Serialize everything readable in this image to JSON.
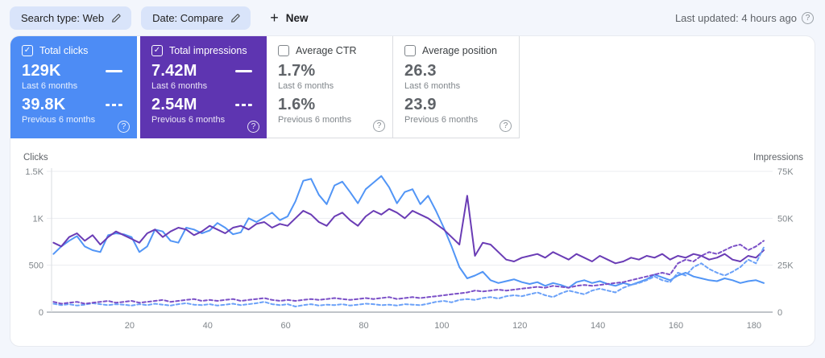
{
  "toolbar": {
    "chips": [
      {
        "label": "Search type: Web"
      },
      {
        "label": "Date: Compare"
      }
    ],
    "new_button_label": "New",
    "last_updated": "Last updated: 4 hours ago"
  },
  "cards": [
    {
      "title": "Total clicks",
      "checked": true,
      "color": "#4d8cf5",
      "current": {
        "value": "129K",
        "label": "Last 6 months"
      },
      "previous": {
        "value": "39.8K",
        "label": "Previous 6 months"
      }
    },
    {
      "title": "Total impressions",
      "checked": true,
      "color": "#5e35b1",
      "current": {
        "value": "7.42M",
        "label": "Last 6 months"
      },
      "previous": {
        "value": "2.54M",
        "label": "Previous 6 months"
      }
    },
    {
      "title": "Average CTR",
      "checked": false,
      "current": {
        "value": "1.7%",
        "label": "Last 6 months"
      },
      "previous": {
        "value": "1.6%",
        "label": "Previous 6 months"
      }
    },
    {
      "title": "Average position",
      "checked": false,
      "current": {
        "value": "26.3",
        "label": "Last 6 months"
      },
      "previous": {
        "value": "23.9",
        "label": "Previous 6 months"
      }
    }
  ],
  "chart_data": {
    "type": "line",
    "left_axis": {
      "title": "Clicks",
      "range": [
        0,
        1500
      ],
      "ticks": [
        0,
        500,
        1000,
        1500
      ],
      "tick_labels": [
        "0",
        "500",
        "1K",
        "1.5K"
      ]
    },
    "right_axis": {
      "title": "Impressions",
      "range": [
        0,
        75000
      ],
      "ticks": [
        0,
        25000,
        50000,
        75000
      ],
      "tick_labels": [
        "0",
        "25K",
        "50K",
        "75K"
      ]
    },
    "x_axis": {
      "range": [
        0,
        184
      ],
      "ticks": [
        20,
        40,
        60,
        80,
        100,
        120,
        140,
        160,
        180
      ]
    },
    "x_step": 2,
    "grid": true,
    "series": [
      {
        "name": "Total clicks - Last 6 months",
        "axis": "left",
        "style": "solid",
        "color": "#5195f6",
        "values": [
          620,
          700,
          760,
          810,
          700,
          660,
          640,
          820,
          840,
          830,
          800,
          640,
          700,
          880,
          860,
          760,
          740,
          900,
          880,
          840,
          870,
          950,
          900,
          830,
          850,
          1000,
          960,
          1010,
          1060,
          980,
          1020,
          1180,
          1400,
          1420,
          1250,
          1150,
          1350,
          1390,
          1280,
          1160,
          1310,
          1380,
          1450,
          1330,
          1160,
          1280,
          1310,
          1150,
          1240,
          1080,
          900,
          700,
          480,
          360,
          390,
          430,
          340,
          310,
          330,
          350,
          320,
          300,
          320,
          280,
          310,
          290,
          260,
          320,
          340,
          310,
          330,
          300,
          280,
          310,
          290,
          320,
          350,
          400,
          370,
          340,
          390,
          420,
          380,
          360,
          340,
          330,
          360,
          340,
          310,
          330,
          340,
          310
        ]
      },
      {
        "name": "Total impressions - Last 6 months",
        "axis": "right",
        "style": "solid",
        "color": "#6a3cb5",
        "values": [
          37000,
          35000,
          40000,
          42000,
          38000,
          41000,
          36000,
          40000,
          43000,
          41000,
          39000,
          37000,
          42000,
          44000,
          40000,
          43000,
          45000,
          44000,
          41000,
          43000,
          46000,
          44000,
          42000,
          45000,
          46000,
          44000,
          47000,
          48000,
          45000,
          47000,
          46000,
          50000,
          54000,
          52000,
          48000,
          46000,
          51000,
          53000,
          49000,
          46000,
          51000,
          54000,
          52000,
          55000,
          53000,
          50000,
          54000,
          52000,
          50000,
          47000,
          44000,
          40000,
          36000,
          62000,
          30000,
          37000,
          36000,
          32000,
          28000,
          27000,
          29000,
          30000,
          31000,
          29000,
          32000,
          30000,
          28000,
          31000,
          29000,
          27000,
          30000,
          28000,
          26000,
          27000,
          29000,
          28000,
          30000,
          29000,
          31000,
          28000,
          30000,
          29000,
          31000,
          30000,
          28000,
          29000,
          31000,
          28000,
          27000,
          30000,
          29000,
          33000
        ]
      },
      {
        "name": "Total clicks - Previous 6 months",
        "axis": "left",
        "style": "dashed",
        "color": "#6ba1f8",
        "values": [
          90,
          75,
          85,
          70,
          80,
          95,
          85,
          75,
          85,
          80,
          70,
          85,
          75,
          90,
          80,
          70,
          85,
          95,
          80,
          75,
          85,
          70,
          80,
          90,
          75,
          85,
          95,
          110,
          85,
          75,
          85,
          60,
          75,
          85,
          70,
          80,
          75,
          85,
          70,
          80,
          90,
          85,
          75,
          80,
          70,
          85,
          80,
          75,
          90,
          110,
          120,
          105,
          130,
          140,
          130,
          150,
          160,
          145,
          170,
          180,
          170,
          190,
          210,
          180,
          160,
          200,
          230,
          210,
          190,
          230,
          250,
          230,
          210,
          260,
          290,
          310,
          340,
          380,
          340,
          320,
          420,
          390,
          480,
          520,
          460,
          420,
          390,
          430,
          480,
          560,
          520,
          690
        ]
      },
      {
        "name": "Total impressions - Previous 6 months",
        "axis": "right",
        "style": "dashed",
        "color": "#7b50c7",
        "values": [
          5500,
          4500,
          5000,
          5500,
          4500,
          5000,
          5500,
          6000,
          5000,
          5500,
          6000,
          5000,
          5500,
          6000,
          6500,
          5500,
          6000,
          6500,
          7000,
          6000,
          6500,
          6000,
          6500,
          7000,
          6000,
          6500,
          7000,
          7500,
          6500,
          6000,
          6500,
          6000,
          6500,
          7000,
          6500,
          7000,
          7500,
          7000,
          6500,
          7000,
          7500,
          7000,
          7500,
          8000,
          7000,
          7500,
          8000,
          7500,
          8000,
          8500,
          9000,
          9500,
          10000,
          10500,
          11500,
          11000,
          11500,
          12000,
          11500,
          12000,
          12500,
          13000,
          13500,
          13000,
          14000,
          13500,
          13000,
          14000,
          14500,
          14000,
          14500,
          15000,
          15500,
          16000,
          17000,
          18000,
          19000,
          20000,
          21000,
          20000,
          26000,
          28000,
          27000,
          30000,
          32000,
          31000,
          33000,
          35000,
          36000,
          33000,
          35000,
          38000
        ]
      }
    ],
    "colors": {
      "grid": "#ebedf1",
      "baseline": "#c0c4c9",
      "axis_line": "#dadce0",
      "tick_text": "#80868b"
    }
  }
}
